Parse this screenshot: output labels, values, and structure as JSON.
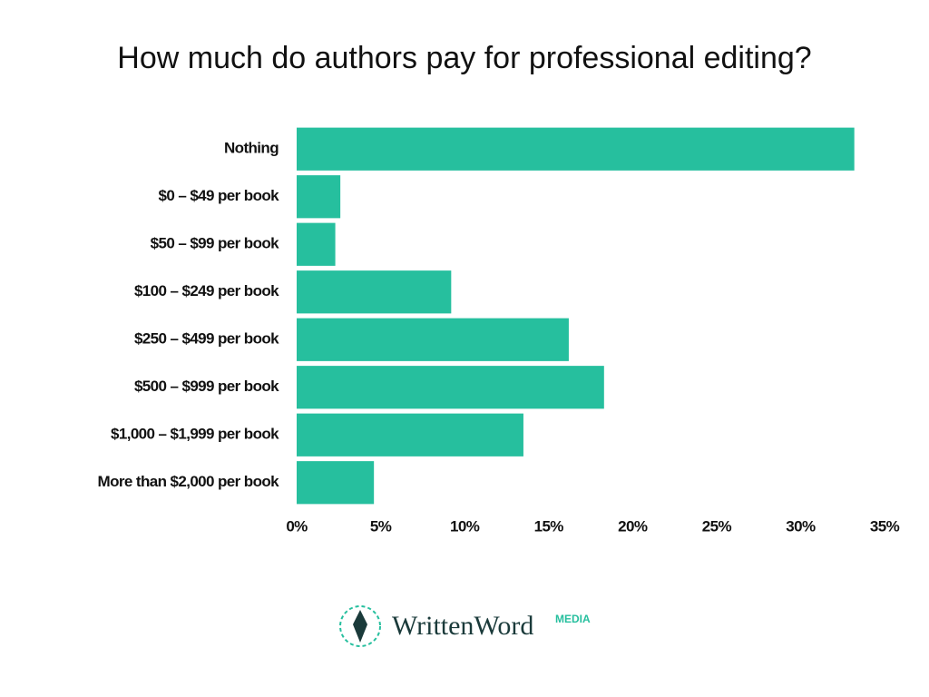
{
  "chart_data": {
    "type": "bar",
    "orientation": "horizontal",
    "title": "How much do authors pay for professional editing?",
    "categories": [
      "Nothing",
      "$0 – $49 per book",
      "$50 – $99 per book",
      "$100 – $249 per book",
      "$250 – $499 per book",
      "$500 – $999 per book",
      "$1,000 – $1,999 per book",
      "More than $2,000 per book"
    ],
    "values": [
      33.2,
      2.6,
      2.3,
      9.2,
      16.2,
      18.3,
      13.5,
      4.6
    ],
    "color": "#26bf9e",
    "xlim": [
      0,
      35
    ],
    "xticks": [
      {
        "value": 0,
        "label": "0%"
      },
      {
        "value": 5,
        "label": "5%"
      },
      {
        "value": 10,
        "label": "10%"
      },
      {
        "value": 15,
        "label": "15%"
      },
      {
        "value": 20,
        "label": "20%"
      },
      {
        "value": 25,
        "label": "25%"
      },
      {
        "value": 30,
        "label": "30%"
      },
      {
        "value": 35,
        "label": "35%"
      }
    ],
    "grid": false
  },
  "logo": {
    "name": "WrittenWord",
    "tag": "MEDIA"
  }
}
